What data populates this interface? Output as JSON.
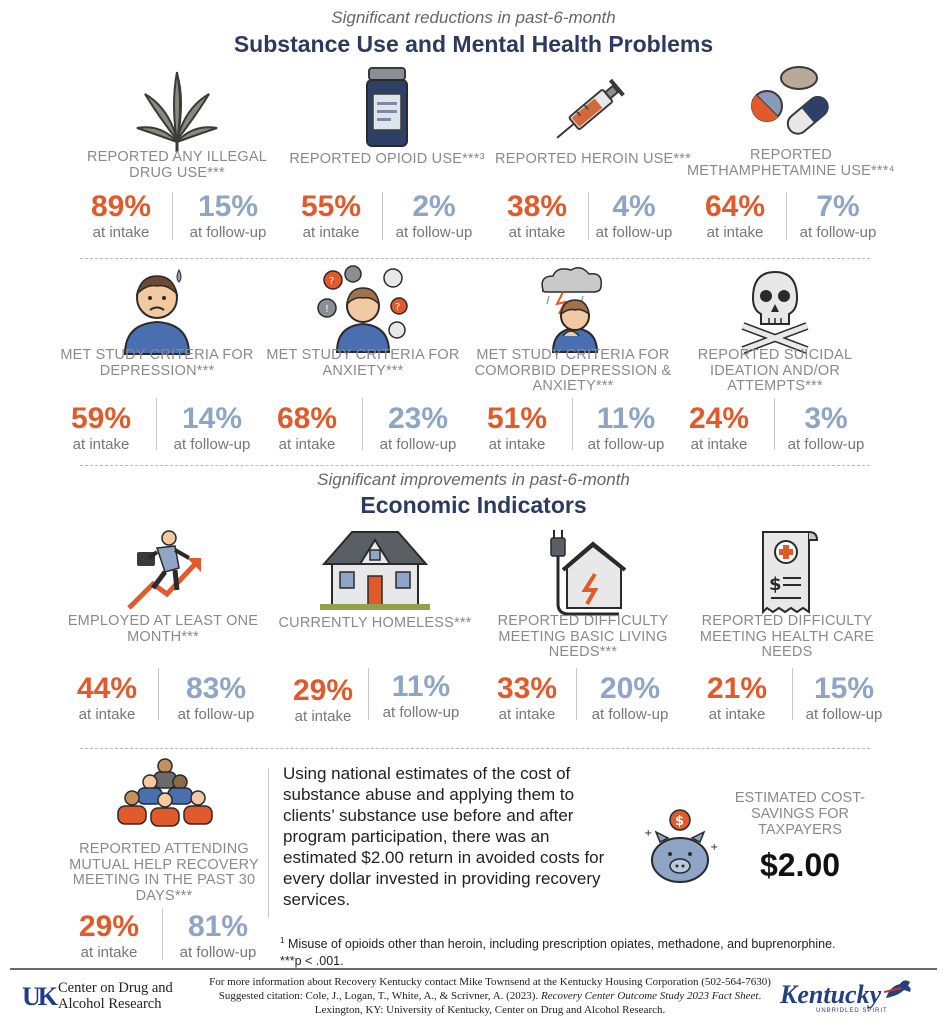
{
  "section1": {
    "subtitle": "Significant reductions in past-6-month",
    "title": "Substance Use and Mental Health Problems"
  },
  "section2": {
    "subtitle": "Significant improvements in past-6-month",
    "title": "Economic Indicators"
  },
  "caption_intake": "at intake",
  "caption_followup": "at follow-up",
  "row1": [
    {
      "icon": "cannabis-leaf-icon",
      "label": "REPORTED ANY ILLEGAL DRUG USE***",
      "intake": "89%",
      "followup": "15%"
    },
    {
      "icon": "pill-bottle-icon",
      "label": "REPORTED OPIOID USE***³",
      "intake": "55%",
      "followup": "2%"
    },
    {
      "icon": "syringe-icon",
      "label": "REPORTED HEROIN USE***",
      "intake": "38%",
      "followup": "4%"
    },
    {
      "icon": "pills-icon",
      "label": "REPORTED METHAMPHETAMINE USE***⁴",
      "intake": "64%",
      "followup": "7%"
    }
  ],
  "row2": [
    {
      "icon": "sad-person-icon",
      "label": "MET STUDY CRITERIA FOR DEPRESSION***",
      "intake": "59%",
      "followup": "14%"
    },
    {
      "icon": "anxious-person-icon",
      "label": "MET STUDY CRITERIA FOR ANXIETY***",
      "intake": "68%",
      "followup": "23%"
    },
    {
      "icon": "storm-cloud-person-icon",
      "label": "MET STUDY CRITERIA FOR COMORBID DEPRESSION & ANXIETY***",
      "intake": "51%",
      "followup": "11%"
    },
    {
      "icon": "skull-crossbones-icon",
      "label": "REPORTED SUICIDAL IDEATION AND/OR ATTEMPTS***",
      "intake": "24%",
      "followup": "3%"
    }
  ],
  "row3": [
    {
      "icon": "businessman-rising-arrow-icon",
      "label": "EMPLOYED AT LEAST ONE MONTH***",
      "intake": "44%",
      "followup": "83%"
    },
    {
      "icon": "house-icon",
      "label": "CURRENTLY HOMELESS***",
      "intake": "29%",
      "followup": "11%"
    },
    {
      "icon": "house-plug-icon",
      "label": "REPORTED DIFFICULTY MEETING BASIC LIVING NEEDS***",
      "intake": "33%",
      "followup": "20%"
    },
    {
      "icon": "medical-bill-icon",
      "label": "REPORTED DIFFICULTY MEETING HEALTH CARE NEEDS",
      "intake": "21%",
      "followup": "15%"
    }
  ],
  "mutual_help": {
    "icon": "group-meeting-icon",
    "label": "REPORTED ATTENDING MUTUAL HELP RECOVERY MEETING IN THE PAST 30 DAYS***",
    "intake": "29%",
    "followup": "81%"
  },
  "return_paragraph": "Using national estimates of the cost of substance abuse and applying them to clients’ substance use before and after program participation, there was an estimated $2.00 return in avoided costs for every dollar invested in providing recovery services.",
  "savings": {
    "icon": "piggy-bank-icon",
    "label": "ESTIMATED COST-SAVINGS FOR TAXPAYERS",
    "value": "$2.00"
  },
  "footnote_1": "Misuse of opioids other than heroin, including prescription opiates, methadone, and buprenorphine.",
  "footnote_1_mark": "1",
  "footnote_2": "***p < .001.",
  "footer": {
    "uk_mark": "UK",
    "org_line1": "Center on Drug and",
    "org_line2": "Alcohol Research",
    "info": "For more information about Recovery Kentucky contact Mike Townsend at the Kentucky Housing Corporation (502-564-7630)",
    "citation_prefix": "Suggested citation: Cole, J., Logan, T., White, A., & Scrivner, A. (2023). ",
    "citation_title": "Recovery Center Outcome Study 2023 Fact Sheet",
    "citation_suffix": ". Lexington, KY: University of Kentucky, Center on Drug and Alcohol Research.",
    "ky_word": "Kentucky",
    "ky_tag": "UNBRIDLED SPIRIT"
  },
  "colors": {
    "intake": "#e05a2b",
    "followup": "#8ea5c6",
    "title": "#2b3a5e"
  }
}
